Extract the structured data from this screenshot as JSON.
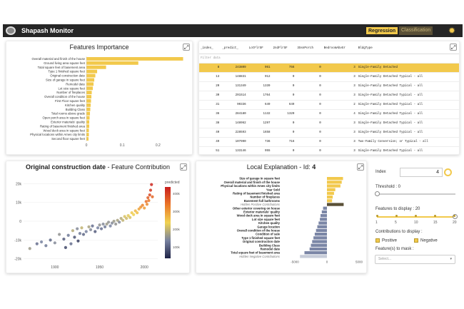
{
  "app": {
    "title": "Shapash Monitor",
    "tab_regression": "Regression",
    "tab_classification": "Classification"
  },
  "features_importance": {
    "title": "Features Importance",
    "features": [
      {
        "name": "Overall material and finish of the house",
        "value": 0.27
      },
      {
        "name": "Ground living area square feet",
        "value": 0.145
      },
      {
        "name": "Total square feet of basement area",
        "value": 0.055
      },
      {
        "name": "Type 1 finished square feet",
        "value": 0.03
      },
      {
        "name": "Original construction date",
        "value": 0.025
      },
      {
        "name": "Size of garage in square feet",
        "value": 0.022
      },
      {
        "name": "Remodel date",
        "value": 0.02
      },
      {
        "name": "Lot size square feet",
        "value": 0.018
      },
      {
        "name": "Number of fireplaces",
        "value": 0.015
      },
      {
        "name": "Overall condition of the house",
        "value": 0.014
      },
      {
        "name": "First Floor square feet",
        "value": 0.013
      },
      {
        "name": "Kitchen quality",
        "value": 0.012
      },
      {
        "name": "Building Class",
        "value": 0.011
      },
      {
        "name": "Total rooms above grade",
        "value": 0.01
      },
      {
        "name": "Open porch area in square feet",
        "value": 0.009
      },
      {
        "name": "Exterior materials' quality",
        "value": 0.008
      },
      {
        "name": "Rating of basement finished area",
        "value": 0.008
      },
      {
        "name": "Wood deck area in square feet",
        "value": 0.007
      },
      {
        "name": "Physical locations within Ames city limits",
        "value": 0.007
      },
      {
        "name": "Second floor square feet",
        "value": 0.006
      }
    ],
    "ticks": [
      "0",
      "0.1",
      "0.2"
    ]
  },
  "table": {
    "columns": [
      "_index_",
      "_predict_",
      "LotFlrSF",
      "2ndFlrSF",
      "3SsnPorch",
      "BedroomAbvGr",
      "BldgType"
    ],
    "filter_label": "Filter data",
    "rows": [
      [
        "8",
        "243809",
        "961",
        "756",
        "0",
        "3",
        "Single-Family Detached"
      ],
      [
        "13",
        "148831",
        "912",
        "0",
        "0",
        "3",
        "Single-Family Detached Typical - all"
      ],
      [
        "20",
        "131349",
        "1339",
        "0",
        "0",
        "3",
        "Single-Family Detached Typical - all"
      ],
      [
        "30",
        "291514",
        "1764",
        "0",
        "0",
        "3",
        "Single-Family Detached Typical - all"
      ],
      [
        "31",
        "90336",
        "649",
        "649",
        "0",
        "2",
        "Single-Family Detached Typical - all"
      ],
      [
        "36",
        "284180",
        "1132",
        "1320",
        "0",
        "4",
        "Single-Family Detached Typical - all"
      ],
      [
        "38",
        "148962",
        "1297",
        "0",
        "0",
        "3",
        "Single-Family Detached Typical - all"
      ],
      [
        "40",
        "228593",
        "1658",
        "0",
        "0",
        "3",
        "Single-Family Detached Typical - all"
      ],
      [
        "49",
        "107990",
        "736",
        "716",
        "0",
        "3",
        "Two-Family Conversion; or Typical - all"
      ],
      [
        "51",
        "133146",
        "955",
        "0",
        "0",
        "3",
        "Single-Family Detached Typical - all"
      ],
      [
        "53",
        "137374",
        "816",
        "0",
        "0",
        "3",
        "Single-Family Detached Typical - all"
      ]
    ]
  },
  "contribution": {
    "title_bold": "Original construction date",
    "title_rest": " - Feature Contribution",
    "yticks": [
      "20k",
      "10k",
      "0",
      "-10k",
      "-20k"
    ],
    "xticks": [
      "1900",
      "1950",
      "2000"
    ],
    "legend_title": "predicted",
    "legend_ticks": [
      "400k",
      "300k",
      "200k",
      "100k"
    ],
    "points": [
      {
        "x": 1872,
        "y": -14500,
        "p": 180
      },
      {
        "x": 1880,
        "y": -12000,
        "p": 130
      },
      {
        "x": 1885,
        "y": -11000,
        "p": 150
      },
      {
        "x": 1890,
        "y": -13000,
        "p": 140
      },
      {
        "x": 1895,
        "y": -10000,
        "p": 120
      },
      {
        "x": 1900,
        "y": -11500,
        "p": 160
      },
      {
        "x": 1905,
        "y": -7000,
        "p": 170
      },
      {
        "x": 1910,
        "y": -9500,
        "p": 110
      },
      {
        "x": 1912,
        "y": -14000,
        "p": 90
      },
      {
        "x": 1915,
        "y": -7500,
        "p": 140
      },
      {
        "x": 1918,
        "y": -12000,
        "p": 130
      },
      {
        "x": 1920,
        "y": -5000,
        "p": 200
      },
      {
        "x": 1922,
        "y": -8500,
        "p": 100
      },
      {
        "x": 1925,
        "y": -4000,
        "p": 160
      },
      {
        "x": 1926,
        "y": -10500,
        "p": 80
      },
      {
        "x": 1928,
        "y": -6500,
        "p": 140
      },
      {
        "x": 1930,
        "y": -3500,
        "p": 210
      },
      {
        "x": 1932,
        "y": -7000,
        "p": 120
      },
      {
        "x": 1935,
        "y": -5500,
        "p": 150
      },
      {
        "x": 1938,
        "y": -3000,
        "p": 190
      },
      {
        "x": 1940,
        "y": -4500,
        "p": 160
      },
      {
        "x": 1942,
        "y": -2500,
        "p": 130
      },
      {
        "x": 1945,
        "y": -5500,
        "p": 110
      },
      {
        "x": 1948,
        "y": -3500,
        "p": 150
      },
      {
        "x": 1950,
        "y": -2000,
        "p": 170
      },
      {
        "x": 1952,
        "y": -4000,
        "p": 130
      },
      {
        "x": 1954,
        "y": -1500,
        "p": 160
      },
      {
        "x": 1956,
        "y": -3000,
        "p": 140
      },
      {
        "x": 1958,
        "y": -1500,
        "p": 180
      },
      {
        "x": 1960,
        "y": -500,
        "p": 170
      },
      {
        "x": 1962,
        "y": -2500,
        "p": 150
      },
      {
        "x": 1964,
        "y": -1000,
        "p": 160
      },
      {
        "x": 1966,
        "y": 0,
        "p": 180
      },
      {
        "x": 1968,
        "y": -1500,
        "p": 170
      },
      {
        "x": 1970,
        "y": 500,
        "p": 190
      },
      {
        "x": 1972,
        "y": -500,
        "p": 160
      },
      {
        "x": 1974,
        "y": 1500,
        "p": 200
      },
      {
        "x": 1976,
        "y": 500,
        "p": 210
      },
      {
        "x": 1978,
        "y": 2500,
        "p": 230
      },
      {
        "x": 1980,
        "y": 1500,
        "p": 220
      },
      {
        "x": 1982,
        "y": 3000,
        "p": 240
      },
      {
        "x": 1984,
        "y": 2000,
        "p": 230
      },
      {
        "x": 1986,
        "y": 4500,
        "p": 260
      },
      {
        "x": 1988,
        "y": 3500,
        "p": 250
      },
      {
        "x": 1990,
        "y": 5500,
        "p": 280
      },
      {
        "x": 1992,
        "y": 4500,
        "p": 270
      },
      {
        "x": 1994,
        "y": 6500,
        "p": 300
      },
      {
        "x": 1996,
        "y": 7500,
        "p": 320
      },
      {
        "x": 1998,
        "y": 8500,
        "p": 340
      },
      {
        "x": 2000,
        "y": 7000,
        "p": 310
      },
      {
        "x": 2002,
        "y": 10500,
        "p": 360
      },
      {
        "x": 2003,
        "y": 9000,
        "p": 330
      },
      {
        "x": 2004,
        "y": 12500,
        "p": 380
      },
      {
        "x": 2005,
        "y": 11000,
        "p": 350
      },
      {
        "x": 2006,
        "y": 14000,
        "p": 400
      },
      {
        "x": 2007,
        "y": 16500,
        "p": 420
      },
      {
        "x": 2008,
        "y": 19500,
        "p": 440
      },
      {
        "x": 2009,
        "y": 13000,
        "p": 370
      }
    ]
  },
  "local": {
    "title_prefix": "Local Explanation - Id: ",
    "id": "4",
    "xticks": [
      "-5000",
      "0",
      "5000"
    ],
    "items": [
      {
        "name": "Size of garage in square feet",
        "value": 2500,
        "style": "pos"
      },
      {
        "name": "Overall material and finish of the house",
        "value": 2300,
        "style": "pos"
      },
      {
        "name": "Physical locations within Ames city limits",
        "value": 2100,
        "style": "pos"
      },
      {
        "name": "Year Sold",
        "value": 1300,
        "style": "pos"
      },
      {
        "name": "Rating of basement finished area",
        "value": 1100,
        "style": "pos"
      },
      {
        "name": "Number of fireplaces",
        "value": 900,
        "style": "pos"
      },
      {
        "name": "Basement full bathrooms",
        "value": 800,
        "style": "pos"
      },
      {
        "name": "Hidden Positive Contributions",
        "value": 2600,
        "style": "hidden"
      },
      {
        "name": "Other exterior covering on house",
        "value": -600,
        "style": "neg"
      },
      {
        "name": "Exterior materials' quality",
        "value": -800,
        "style": "neg"
      },
      {
        "name": "Wood deck area in square feet",
        "value": -1000,
        "style": "neg"
      },
      {
        "name": "Lot size square feet",
        "value": -1100,
        "style": "neg"
      },
      {
        "name": "Kitchen quality",
        "value": -1300,
        "style": "neg"
      },
      {
        "name": "Garage location",
        "value": -1500,
        "style": "neg"
      },
      {
        "name": "Overall condition of the house",
        "value": -1700,
        "style": "neg"
      },
      {
        "name": "Condition of sale",
        "value": -1900,
        "style": "neg"
      },
      {
        "name": "Type 1 finished square feet",
        "value": -2100,
        "style": "neg"
      },
      {
        "name": "Original construction date",
        "value": -2300,
        "style": "neg"
      },
      {
        "name": "Building Class",
        "value": -2500,
        "style": "neg"
      },
      {
        "name": "Remodel date",
        "value": -2700,
        "style": "neg"
      },
      {
        "name": "Total square feet of basement area",
        "value": -3500,
        "style": "neg"
      },
      {
        "name": "Hidden Negative Contributions",
        "value": -4200,
        "style": "hiddenneg"
      }
    ]
  },
  "controls": {
    "index_label": "Index",
    "index_value": "4",
    "threshold_label": "Threshold : 0",
    "features_label": "Features to display : 20",
    "features_ticks": [
      "1",
      "5",
      "10",
      "15",
      "20"
    ],
    "contrib_label": "Contributions to display :",
    "positive": "Positive",
    "negative": "Negative",
    "mask_label": "Feature(s) to mask :",
    "mask_placeholder": "Select..."
  },
  "colors": {
    "accent": "#f2c94c",
    "topbar": "#262626",
    "neg_bar": "#7b86a6"
  }
}
